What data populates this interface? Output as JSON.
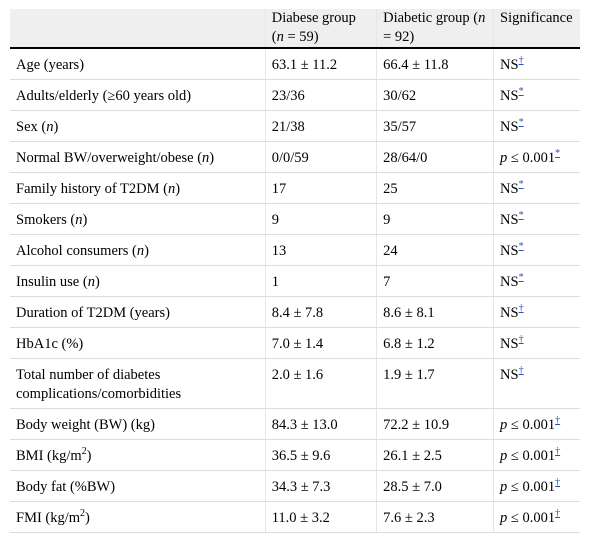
{
  "header": {
    "col1": "",
    "col2_line1": "Diabese group",
    "col2_line2": "(n = 59)",
    "col3_line1": "Diabetic group (n",
    "col3_line2": "= 92)",
    "col4": "Significance"
  },
  "rows": [
    {
      "label": "Age (years)",
      "diabese": "63.1 ± 11.2",
      "diabetic": "66.4 ± 11.8",
      "sig": "NS",
      "mark": "†"
    },
    {
      "label": "Adults/elderly (≥60 years old)",
      "diabese": "23/36",
      "diabetic": "30/62",
      "sig": "NS",
      "mark": "*"
    },
    {
      "label": "Sex (n)",
      "diabese": "21/38",
      "diabetic": "35/57",
      "sig": "NS",
      "mark": "*"
    },
    {
      "label": "Normal BW/overweight/obese (n)",
      "diabese": "0/0/59",
      "diabetic": "28/64/0",
      "sig": "p ≤ 0.001",
      "mark": "*"
    },
    {
      "label": "Family history of T2DM (n)",
      "diabese": "17",
      "diabetic": "25",
      "sig": "NS",
      "mark": "*"
    },
    {
      "label": "Smokers (n)",
      "diabese": "9",
      "diabetic": "9",
      "sig": "NS",
      "mark": "*"
    },
    {
      "label": "Alcohol consumers (n)",
      "diabese": "13",
      "diabetic": "24",
      "sig": "NS",
      "mark": "*"
    },
    {
      "label": "Insulin use (n)",
      "diabese": "1",
      "diabetic": "7",
      "sig": "NS",
      "mark": "*"
    },
    {
      "label": "Duration of T2DM (years)",
      "diabese": "8.4 ± 7.8",
      "diabetic": "8.6 ± 8.1",
      "sig": "NS",
      "mark": "†"
    },
    {
      "label": "HbA1c (%)",
      "diabese": "7.0 ± 1.4",
      "diabetic": "6.8 ± 1.2",
      "sig": "NS",
      "mark": "†"
    },
    {
      "label_line1": "Total number of diabetes",
      "label_line2": "complications/comorbidities",
      "diabese": "2.0 ± 1.6",
      "diabetic": "1.9 ± 1.7",
      "sig": "NS",
      "mark": "†"
    },
    {
      "label": "Body weight (BW) (kg)",
      "diabese": "84.3 ± 13.0",
      "diabetic": "72.2 ± 10.9",
      "sig": "p ≤ 0.001",
      "mark": "†"
    },
    {
      "label": "BMI (kg/m",
      "unit_sup": "2",
      "label_end": ")",
      "diabese": "36.5 ± 9.6",
      "diabetic": "26.1 ± 2.5",
      "sig": "p ≤ 0.001",
      "mark": "†"
    },
    {
      "label": "Body fat (%BW)",
      "diabese": "34.3 ± 7.3",
      "diabetic": "28.5 ± 7.0",
      "sig": "p ≤ 0.001",
      "mark": "†"
    },
    {
      "label": "FMI (kg/m",
      "unit_sup": "2",
      "label_end": ")",
      "diabese": "11.0 ± 3.2",
      "diabetic": "7.6 ± 2.3",
      "sig": "p ≤ 0.001",
      "mark": "†"
    }
  ]
}
